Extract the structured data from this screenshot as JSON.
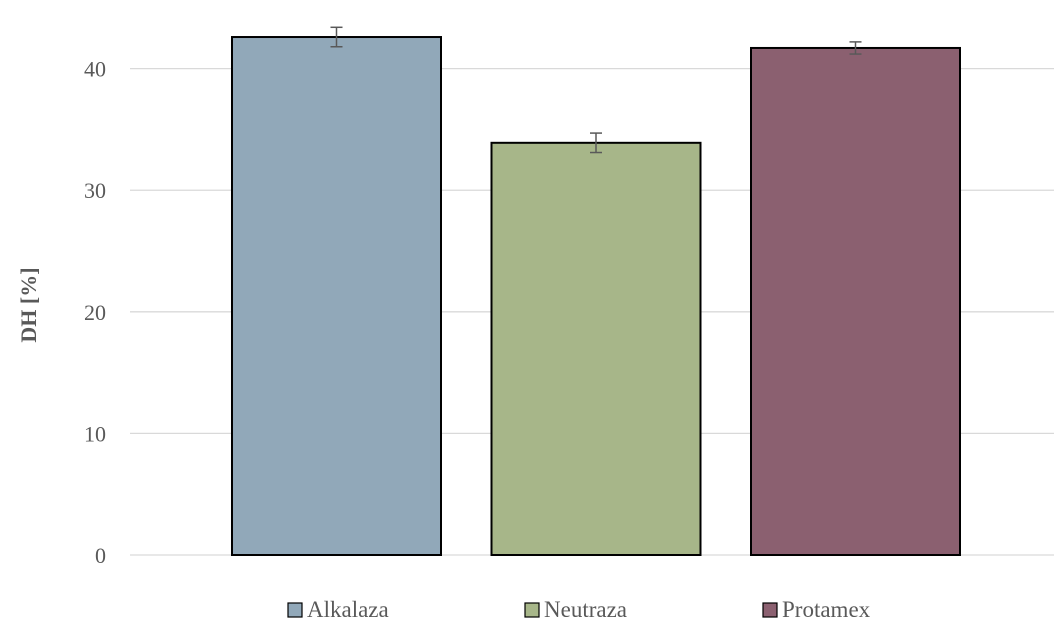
{
  "chart_data": {
    "type": "bar",
    "title": "",
    "xlabel": "",
    "ylabel": "DH [%]",
    "ylim": [
      0,
      44
    ],
    "yticks": [
      0,
      10,
      20,
      30,
      40
    ],
    "grid": true,
    "legend_position": "bottom",
    "series": [
      {
        "name": "Alkalaza",
        "value": 42.6,
        "error": 0.8,
        "color": "#91A8B9"
      },
      {
        "name": "Neutraza",
        "value": 33.9,
        "error": 0.8,
        "color": "#A7B689"
      },
      {
        "name": "Protamex",
        "value": 41.7,
        "error": 0.5,
        "color": "#8B6070"
      }
    ]
  },
  "style": {
    "bar_border": "#000000",
    "grid_color": "#D9D9D9",
    "axis_text_color": "#595959",
    "error_bar_color": "#595959"
  }
}
